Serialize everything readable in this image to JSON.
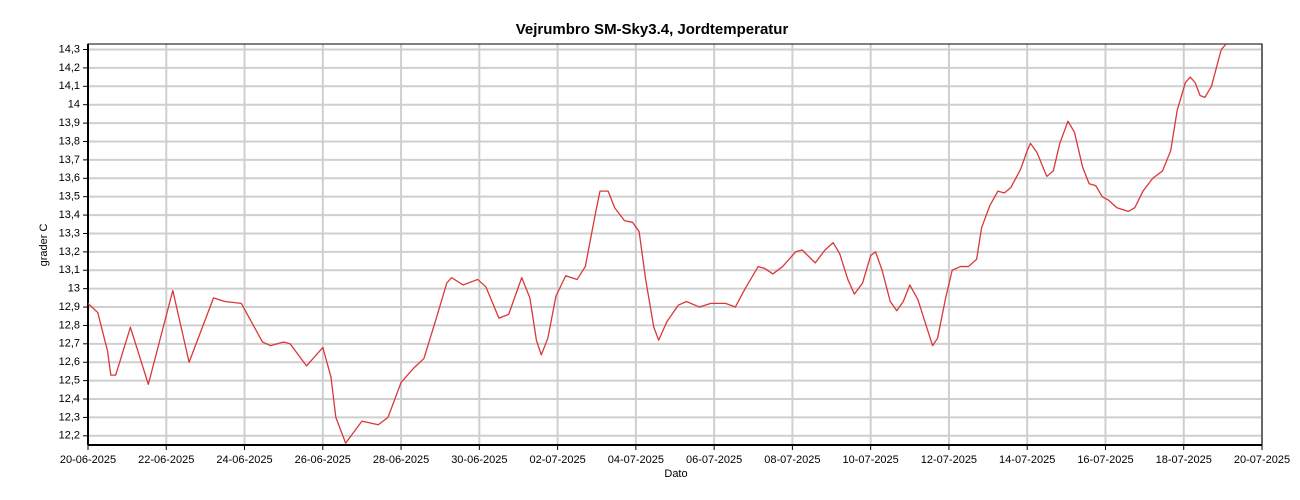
{
  "chart_data": {
    "type": "line",
    "title": "Vejrumbro SM-Sky3.4, Jordtemperatur",
    "x_label": "Dato",
    "y_label": "grader C",
    "grid": true,
    "xlim": [
      "20-06-2025",
      "20-07-2025"
    ],
    "xticks": [
      "20-06-2025",
      "22-06-2025",
      "24-06-2025",
      "26-06-2025",
      "28-06-2025",
      "30-06-2025",
      "02-07-2025",
      "04-07-2025",
      "06-07-2025",
      "08-07-2025",
      "10-07-2025",
      "12-07-2025",
      "14-07-2025",
      "16-07-2025",
      "18-07-2025",
      "20-07-2025"
    ],
    "ylim": [
      12.15,
      14.33
    ],
    "yticks": [
      {
        "value": 12.2,
        "label": "12,2"
      },
      {
        "value": 12.3,
        "label": "12,3"
      },
      {
        "value": 12.4,
        "label": "12,4"
      },
      {
        "value": 12.5,
        "label": "12,5"
      },
      {
        "value": 12.6,
        "label": "12,6"
      },
      {
        "value": 12.7,
        "label": "12,7"
      },
      {
        "value": 12.8,
        "label": "12,8"
      },
      {
        "value": 12.9,
        "label": "12,9"
      },
      13,
      {
        "value": 13.1,
        "label": "13,1"
      },
      {
        "value": 13.2,
        "label": "13,2"
      },
      {
        "value": 13.3,
        "label": "13,3"
      },
      {
        "value": 13.4,
        "label": "13,4"
      },
      {
        "value": 13.5,
        "label": "13,5"
      },
      {
        "value": 13.6,
        "label": "13,6"
      },
      {
        "value": 13.7,
        "label": "13,7"
      },
      {
        "value": 13.8,
        "label": "13,8"
      },
      {
        "value": 13.9,
        "label": "13,9"
      },
      14,
      {
        "value": 14.1,
        "label": "14,1"
      },
      {
        "value": 14.2,
        "label": "14,2"
      },
      {
        "value": 14.3,
        "label": "14,3"
      }
    ],
    "x": [
      "20-06-2025 00:00",
      "20-06-2025 06:00",
      "20-06-2025 12:00",
      "20-06-2025 14:00",
      "20-06-2025 17:00",
      "21-06-2025 02:00",
      "21-06-2025 13:00",
      "22-06-2025 04:00",
      "22-06-2025 14:00",
      "23-06-2025 05:00",
      "23-06-2025 12:00",
      "23-06-2025 22:00",
      "24-06-2025 11:00",
      "24-06-2025 16:00",
      "25-06-2025 00:00",
      "25-06-2025 04:00",
      "25-06-2025 14:00",
      "26-06-2025 00:00",
      "26-06-2025 05:00",
      "26-06-2025 08:00",
      "26-06-2025 14:00",
      "27-06-2025 00:00",
      "27-06-2025 10:00",
      "27-06-2025 16:00",
      "28-06-2025 00:00",
      "28-06-2025 08:00",
      "28-06-2025 14:00",
      "28-06-2025 22:00",
      "29-06-2025 04:00",
      "29-06-2025 07:00",
      "29-06-2025 14:00",
      "29-06-2025 23:00",
      "30-06-2025 04:00",
      "30-06-2025 12:00",
      "30-06-2025 18:00",
      "01-07-2025 02:00",
      "01-07-2025 07:00",
      "01-07-2025 11:00",
      "01-07-2025 14:00",
      "01-07-2025 18:00",
      "01-07-2025 23:00",
      "02-07-2025 05:00",
      "02-07-2025 12:00",
      "02-07-2025 17:00",
      "02-07-2025 23:00",
      "03-07-2025 02:00",
      "03-07-2025 07:00",
      "03-07-2025 11:00",
      "03-07-2025 17:00",
      "03-07-2025 22:00",
      "04-07-2025 02:00",
      "04-07-2025 06:00",
      "04-07-2025 11:00",
      "04-07-2025 14:00",
      "04-07-2025 19:00",
      "05-07-2025 02:00",
      "05-07-2025 07:00",
      "05-07-2025 15:00",
      "05-07-2025 22:00",
      "06-07-2025 07:00",
      "06-07-2025 13:00",
      "06-07-2025 19:00",
      "07-07-2025 03:00",
      "07-07-2025 07:00",
      "07-07-2025 12:00",
      "07-07-2025 18:00",
      "08-07-2025 02:00",
      "08-07-2025 06:00",
      "08-07-2025 14:00",
      "08-07-2025 20:00",
      "09-07-2025 01:00",
      "09-07-2025 05:00",
      "09-07-2025 10:00",
      "09-07-2025 14:00",
      "09-07-2025 19:00",
      "10-07-2025 00:00",
      "10-07-2025 03:00",
      "10-07-2025 07:00",
      "10-07-2025 12:00",
      "10-07-2025 16:00",
      "10-07-2025 20:00",
      "11-07-2025 00:00",
      "11-07-2025 05:00",
      "11-07-2025 10:00",
      "11-07-2025 14:00",
      "11-07-2025 17:00",
      "11-07-2025 22:00",
      "12-07-2025 02:00",
      "12-07-2025 07:00",
      "12-07-2025 12:00",
      "12-07-2025 17:00",
      "12-07-2025 20:00",
      "13-07-2025 01:00",
      "13-07-2025 06:00",
      "13-07-2025 10:00",
      "13-07-2025 14:00",
      "13-07-2025 20:00",
      "14-07-2025 00:00",
      "14-07-2025 02:00",
      "14-07-2025 06:00",
      "14-07-2025 12:00",
      "14-07-2025 16:00",
      "14-07-2025 20:00",
      "15-07-2025 01:00",
      "15-07-2025 05:00",
      "15-07-2025 10:00",
      "15-07-2025 14:00",
      "15-07-2025 18:00",
      "15-07-2025 22:00",
      "16-07-2025 02:00",
      "16-07-2025 07:00",
      "16-07-2025 14:00",
      "16-07-2025 18:00",
      "16-07-2025 23:00",
      "17-07-2025 05:00",
      "17-07-2025 11:00",
      "17-07-2025 16:00",
      "17-07-2025 20:00",
      "18-07-2025 01:00",
      "18-07-2025 04:00",
      "18-07-2025 07:00",
      "18-07-2025 10:00",
      "18-07-2025 13:00",
      "18-07-2025 17:00",
      "18-07-2025 20:00",
      "18-07-2025 23:00",
      "19-07-2025 02:00"
    ],
    "series": [
      {
        "name": "Jordtemperatur",
        "color": "#d9383a",
        "values": [
          12.92,
          12.87,
          12.66,
          12.53,
          12.53,
          12.79,
          12.48,
          12.99,
          12.6,
          12.95,
          12.93,
          12.92,
          12.71,
          12.69,
          12.71,
          12.7,
          12.58,
          12.68,
          12.52,
          12.3,
          12.16,
          12.28,
          12.26,
          12.3,
          12.49,
          12.57,
          12.62,
          12.85,
          13.03,
          13.06,
          13.02,
          13.05,
          13.01,
          12.84,
          12.86,
          13.06,
          12.95,
          12.72,
          12.64,
          12.73,
          12.96,
          13.07,
          13.05,
          13.12,
          13.4,
          13.53,
          13.53,
          13.44,
          13.37,
          13.36,
          13.31,
          13.05,
          12.79,
          12.72,
          12.82,
          12.91,
          12.93,
          12.9,
          12.92,
          12.92,
          12.9,
          13.0,
          13.12,
          13.11,
          13.08,
          13.12,
          13.2,
          13.21,
          13.14,
          13.21,
          13.25,
          13.19,
          13.05,
          12.97,
          13.03,
          13.18,
          13.2,
          13.1,
          12.93,
          12.88,
          12.93,
          13.02,
          12.94,
          12.8,
          12.69,
          12.73,
          12.95,
          13.1,
          13.12,
          13.12,
          13.16,
          13.33,
          13.45,
          13.53,
          13.52,
          13.55,
          13.65,
          13.75,
          13.79,
          13.74,
          13.61,
          13.64,
          13.79,
          13.91,
          13.85,
          13.66,
          13.57,
          13.56,
          13.5,
          13.48,
          13.44,
          13.42,
          13.44,
          13.53,
          13.6,
          13.64,
          13.75,
          13.97,
          14.12,
          14.15,
          14.12,
          14.05,
          14.04,
          14.1,
          14.2,
          14.3,
          14.33
        ]
      }
    ]
  }
}
